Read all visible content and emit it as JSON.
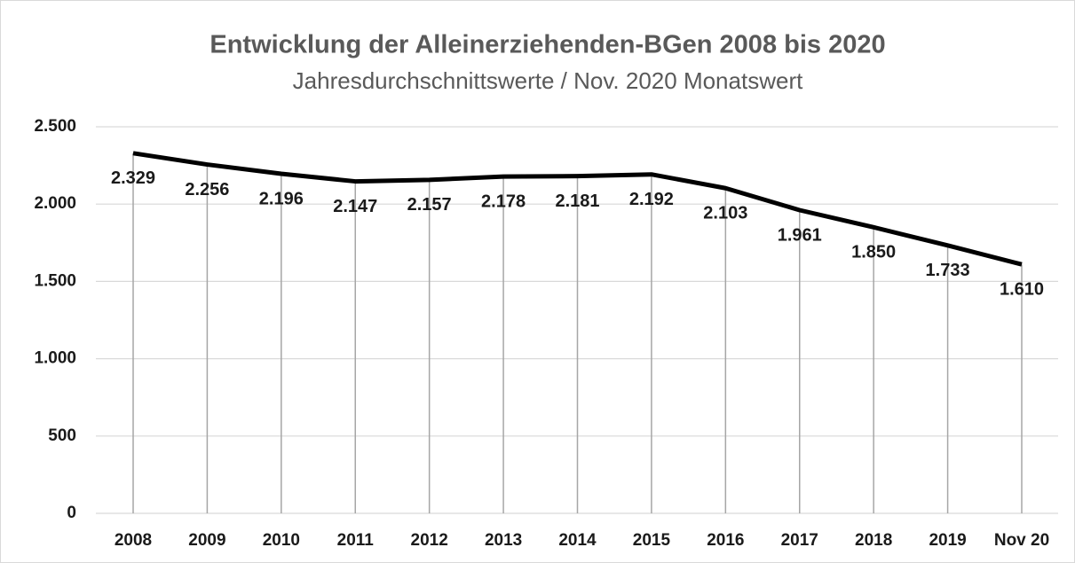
{
  "chart_data": {
    "type": "line",
    "title": "Entwicklung der Alleinerziehenden-BGen 2008 bis 2020",
    "subtitle": "Jahresdurchschnittswerte / Nov. 2020 Monatswert",
    "categories": [
      "2008",
      "2009",
      "2010",
      "2011",
      "2012",
      "2013",
      "2014",
      "2015",
      "2016",
      "2017",
      "2018",
      "2019",
      "Nov 20"
    ],
    "values": [
      2329,
      2256,
      2196,
      2147,
      2157,
      2178,
      2181,
      2192,
      2103,
      1961,
      1850,
      1733,
      1610
    ],
    "value_labels": [
      "2.329",
      "2.256",
      "2.196",
      "2.147",
      "2.157",
      "2.178",
      "2.181",
      "2.192",
      "2.103",
      "1.961",
      "1.850",
      "1.733",
      "1.610"
    ],
    "color": "#000000",
    "ylim": [
      0,
      2500
    ],
    "yticks": [
      0,
      500,
      {
        "value": 1000,
        "label": "1.000"
      },
      {
        "value": 1500,
        "label": "1.500"
      },
      {
        "value": 2000,
        "label": "2.000"
      },
      {
        "value": 2500,
        "label": "2.500"
      }
    ],
    "grid": true,
    "drop_lines": true
  }
}
